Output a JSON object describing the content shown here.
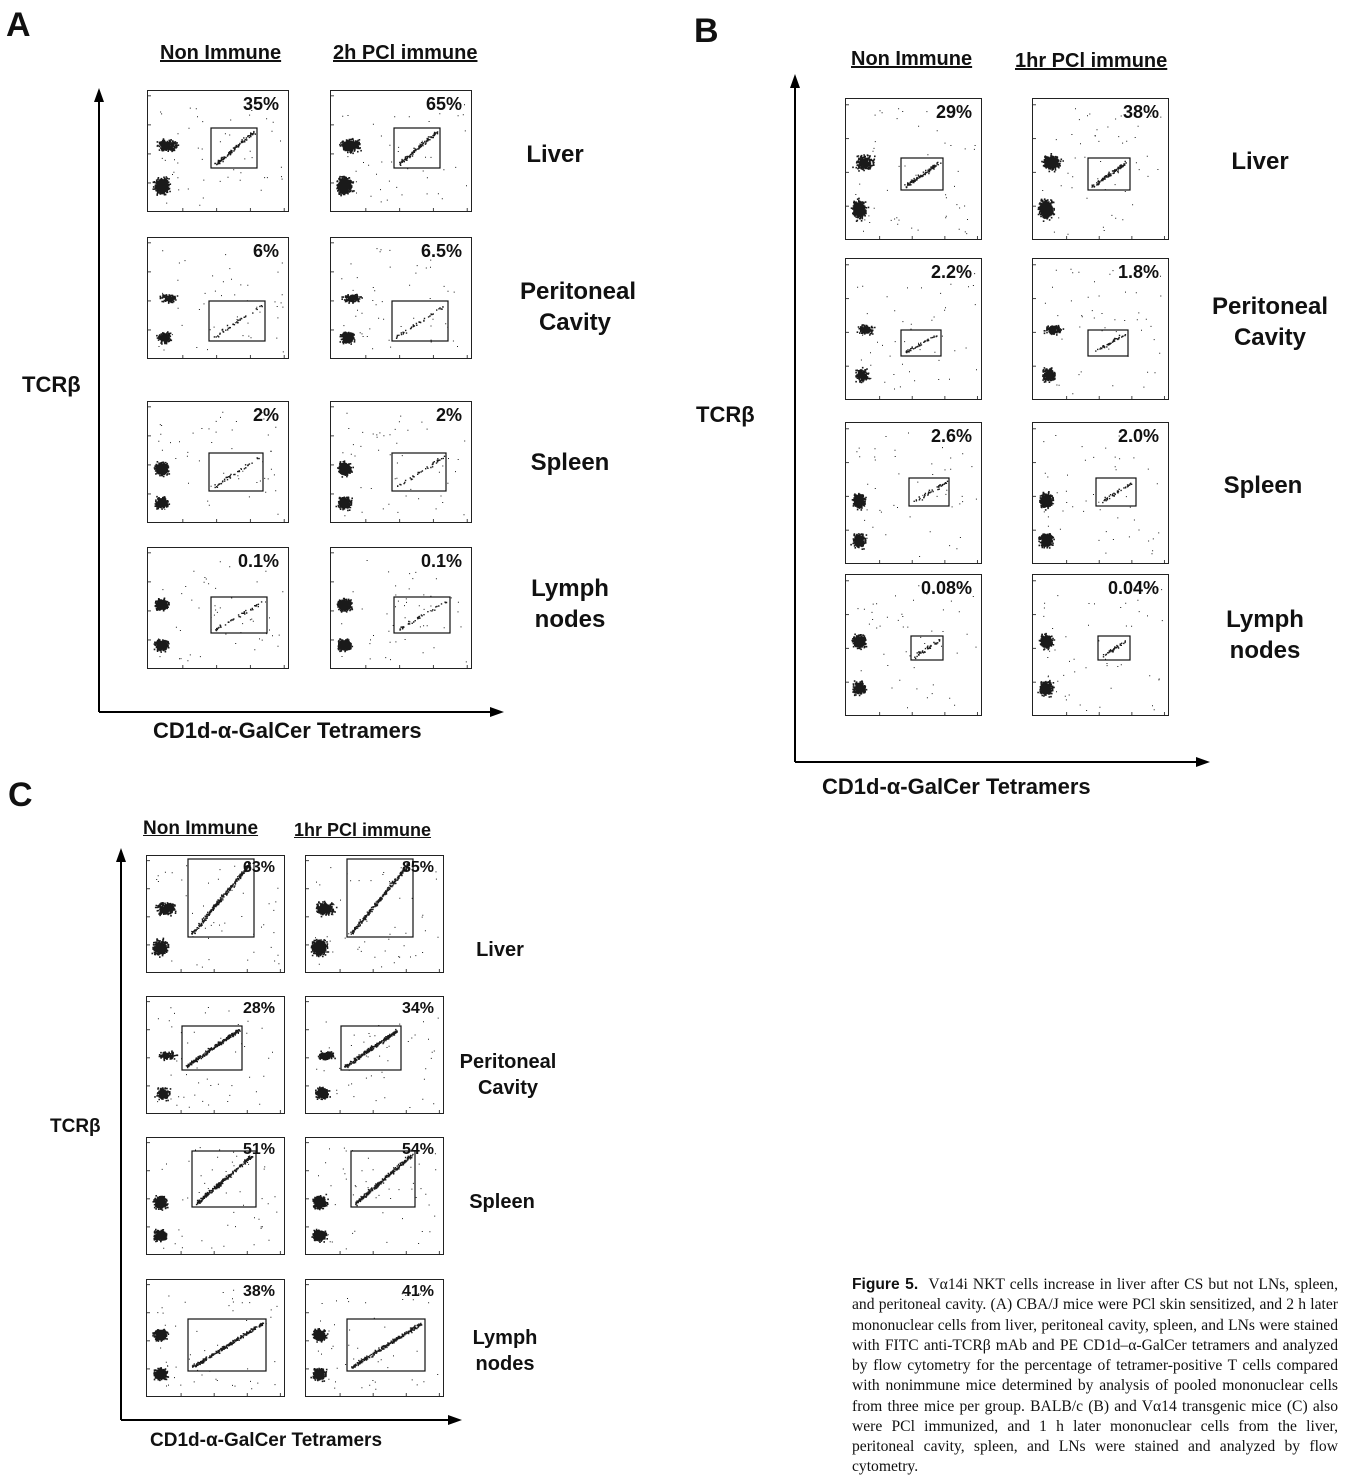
{
  "panel_A": {
    "letter": "A",
    "col_headers": [
      "Non Immune",
      "2h PCl immune"
    ],
    "y_axis_label": "TCRβ",
    "x_axis_label": "CD1d-α-GalCer Tetramers",
    "tissues": [
      "Liver",
      "Peritoneal Cavity",
      "Spleen",
      "Lymph nodes"
    ],
    "percentages": [
      [
        "35%",
        "65%"
      ],
      [
        "6%",
        "6.5%"
      ],
      [
        "2%",
        "2%"
      ],
      [
        "0.1%",
        "0.1%"
      ]
    ]
  },
  "panel_B": {
    "letter": "B",
    "col_headers": [
      "Non Immune",
      "1hr PCl immune"
    ],
    "y_axis_label": "TCRβ",
    "x_axis_label": "CD1d-α-GalCer Tetramers",
    "tissues": [
      "Liver",
      "Peritoneal Cavity",
      "Spleen",
      "Lymph nodes"
    ],
    "percentages": [
      [
        "29%",
        "38%"
      ],
      [
        "2.2%",
        "1.8%"
      ],
      [
        "2.6%",
        "2.0%"
      ],
      [
        "0.08%",
        "0.04%"
      ]
    ]
  },
  "panel_C": {
    "letter": "C",
    "col_headers": [
      "Non Immune",
      "1hr PCl immune"
    ],
    "y_axis_label": "TCRβ",
    "x_axis_label": "CD1d-α-GalCer Tetramers",
    "tissues": [
      "Liver",
      "Peritoneal Cavity",
      "Spleen",
      "Lymph nodes"
    ],
    "percentages": [
      [
        "63%",
        "85%"
      ],
      [
        "28%",
        "34%"
      ],
      [
        "51%",
        "54%"
      ],
      [
        "38%",
        "41%"
      ]
    ]
  },
  "caption": {
    "label": "Figure 5.",
    "text": "Vα14i NKT cells increase in liver after CS but not LNs, spleen, and peritoneal cavity. (A) CBA/J mice were PCl skin sensitized, and 2 h later mononuclear cells from liver, peritoneal cavity, spleen, and LNs were stained with FITC anti-TCRβ mAb and PE CD1d–α-GalCer tetramers and analyzed by flow cytometry for the percentage of tetramer-positive T cells compared with nonimmune mice determined by analysis of pooled mononuclear cells from three mice per group. BALB/c (B) and Vα14 transgenic mice (C) also were PCl immunized, and 1 h later mononuclear cells from the liver, peritoneal cavity, spleen, and LNs were stained and analyzed by flow cytometry."
  }
}
